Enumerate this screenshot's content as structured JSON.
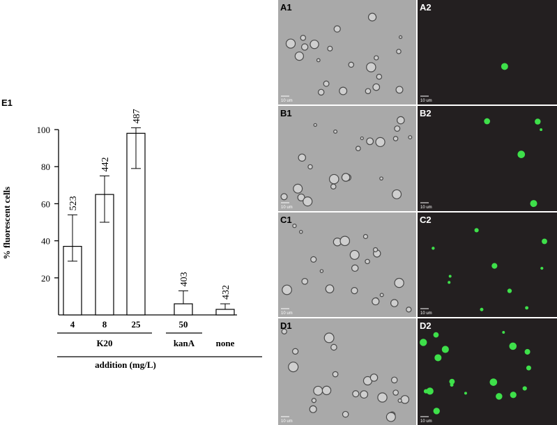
{
  "chart_data": {
    "type": "bar",
    "panel_label": "E1",
    "y_label": "% fluorescent cells",
    "x_label": "addition (mg/L)",
    "categories": [
      "4",
      "8",
      "25",
      "50",
      null
    ],
    "values": [
      37,
      65,
      98,
      6,
      3
    ],
    "error_high": [
      54,
      75,
      101,
      13,
      6
    ],
    "error_low": [
      29,
      50,
      79,
      null,
      null
    ],
    "counts": [
      523,
      442,
      487,
      403,
      432
    ],
    "groups": [
      {
        "label": "K20",
        "size": 3
      },
      {
        "label": "kanA",
        "size": 1
      },
      {
        "label": "none",
        "size": 1
      }
    ],
    "ylim": [
      0,
      100
    ],
    "yticks": [
      20,
      40,
      60,
      80,
      100
    ],
    "color": "#ffffff"
  },
  "images": {
    "scale_label": "10 um",
    "panels": [
      {
        "label": "A1"
      },
      {
        "label": "A2"
      },
      {
        "label": "B1"
      },
      {
        "label": "B2"
      },
      {
        "label": "C1"
      },
      {
        "label": "C2"
      },
      {
        "label": "D1"
      },
      {
        "label": "D2"
      }
    ]
  }
}
